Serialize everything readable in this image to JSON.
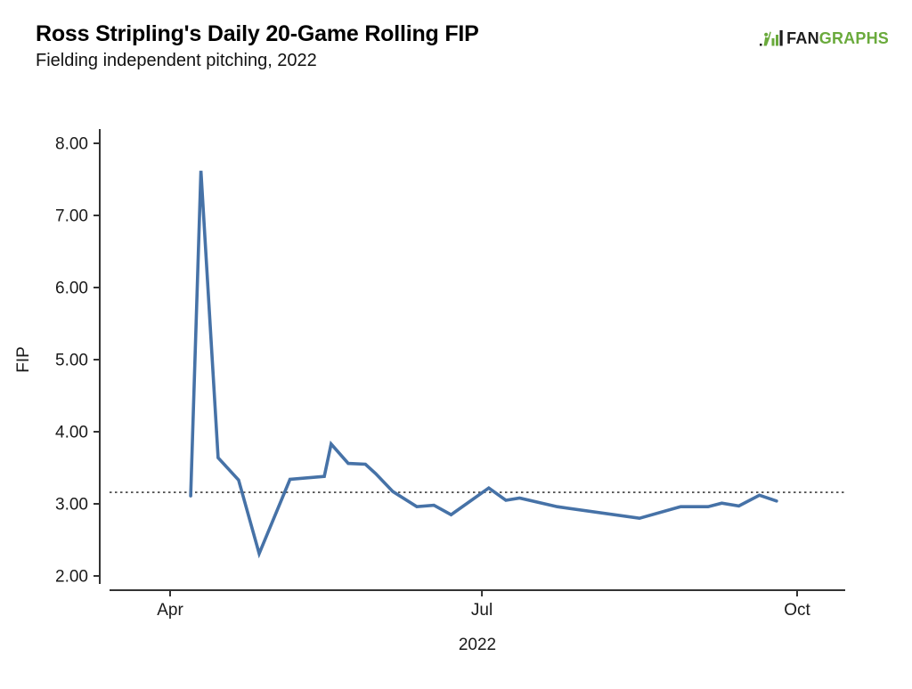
{
  "header": {
    "title": "Ross Stripling's Daily 20-Game Rolling FIP",
    "subtitle": "Fielding independent pitching, 2022"
  },
  "logo": {
    "fan": "FAN",
    "graphs": "GRAPHS",
    "green": "#6aaa3c",
    "dark": "#1d1d1d"
  },
  "chart_data": {
    "type": "line",
    "title": "Ross Stripling's Daily 20-Game Rolling FIP",
    "subtitle": "Fielding independent pitching, 2022",
    "xlabel": "2022",
    "ylabel": "FIP",
    "yticks": [
      2,
      3,
      4,
      5,
      6,
      7,
      8
    ],
    "ytick_decimals": 2,
    "ylim": [
      1.85,
      8.05
    ],
    "xticks": [
      {
        "label": "Apr",
        "day_of_year": 91
      },
      {
        "label": "Jul",
        "day_of_year": 182
      },
      {
        "label": "Oct",
        "day_of_year": 274
      }
    ],
    "reference_line": {
      "value": 3.16,
      "style": "dotted",
      "color": "#3d3d3d"
    },
    "grid": false,
    "legend": "none",
    "series": [
      {
        "name": "FIP",
        "color": "#4672a7",
        "points": [
          {
            "date": "Apr 7",
            "day_of_year": 97,
            "value": 3.11
          },
          {
            "date": "Apr 10",
            "day_of_year": 100,
            "value": 7.62
          },
          {
            "date": "Apr 15",
            "day_of_year": 105,
            "value": 3.64
          },
          {
            "date": "Apr 21",
            "day_of_year": 111,
            "value": 3.33
          },
          {
            "date": "Apr 27",
            "day_of_year": 117,
            "value": 2.31
          },
          {
            "date": "May 6",
            "day_of_year": 126,
            "value": 3.34
          },
          {
            "date": "May 16",
            "day_of_year": 136,
            "value": 3.38
          },
          {
            "date": "May 18",
            "day_of_year": 138,
            "value": 3.83
          },
          {
            "date": "May 23",
            "day_of_year": 143,
            "value": 3.56
          },
          {
            "date": "May 28",
            "day_of_year": 148,
            "value": 3.55
          },
          {
            "date": "May 31",
            "day_of_year": 151,
            "value": 3.42
          },
          {
            "date": "Jun 5",
            "day_of_year": 156,
            "value": 3.17
          },
          {
            "date": "Jun 12",
            "day_of_year": 163,
            "value": 2.96
          },
          {
            "date": "Jun 17",
            "day_of_year": 168,
            "value": 2.98
          },
          {
            "date": "Jun 22",
            "day_of_year": 173,
            "value": 2.85
          },
          {
            "date": "Jul 3",
            "day_of_year": 184,
            "value": 3.22
          },
          {
            "date": "Jul 8",
            "day_of_year": 189,
            "value": 3.05
          },
          {
            "date": "Jul 12",
            "day_of_year": 193,
            "value": 3.08
          },
          {
            "date": "Jul 23",
            "day_of_year": 204,
            "value": 2.96
          },
          {
            "date": "Aug 16",
            "day_of_year": 228,
            "value": 2.8
          },
          {
            "date": "Aug 28",
            "day_of_year": 240,
            "value": 2.96
          },
          {
            "date": "Sep 5",
            "day_of_year": 248,
            "value": 2.96
          },
          {
            "date": "Sep 9",
            "day_of_year": 252,
            "value": 3.01
          },
          {
            "date": "Sep 14",
            "day_of_year": 257,
            "value": 2.97
          },
          {
            "date": "Sep 20",
            "day_of_year": 263,
            "value": 3.12
          },
          {
            "date": "Sep 25",
            "day_of_year": 268,
            "value": 3.04
          }
        ]
      }
    ]
  }
}
